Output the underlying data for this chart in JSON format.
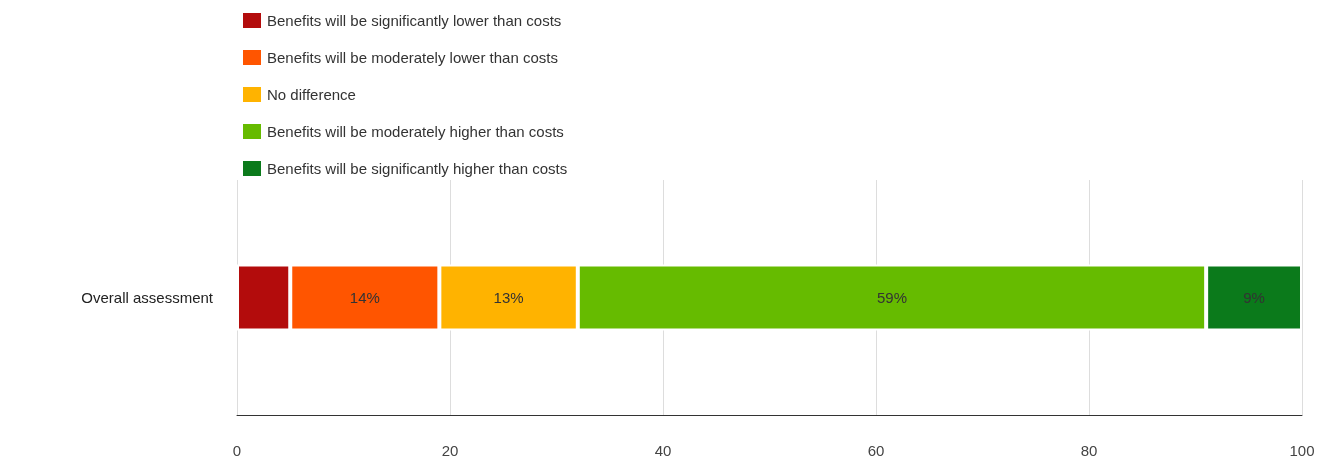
{
  "chart_data": {
    "type": "bar",
    "orientation": "horizontal",
    "stacked": true,
    "categories": [
      "Overall assessment"
    ],
    "series": [
      {
        "name": "Benefits will be significantly lower than costs",
        "color": "#b30c0c",
        "values": [
          5
        ],
        "value_labels": [
          null
        ]
      },
      {
        "name": "Benefits will be moderately lower than costs",
        "color": "#ff5500",
        "values": [
          14
        ],
        "value_labels": [
          "14%"
        ]
      },
      {
        "name": "No difference",
        "color": "#ffb300",
        "values": [
          13
        ],
        "value_labels": [
          "13%"
        ]
      },
      {
        "name": "Benefits will be moderately higher than costs",
        "color": "#66bb00",
        "values": [
          59
        ],
        "value_labels": [
          "59%"
        ]
      },
      {
        "name": "Benefits will be significantly higher than costs",
        "color": "#0b7a1b",
        "values": [
          9
        ],
        "value_labels": [
          "9%"
        ]
      }
    ],
    "xlim": [
      0,
      100
    ],
    "xticks": [
      0,
      20,
      40,
      60,
      80,
      100
    ],
    "grid": "x",
    "legend": "top"
  }
}
